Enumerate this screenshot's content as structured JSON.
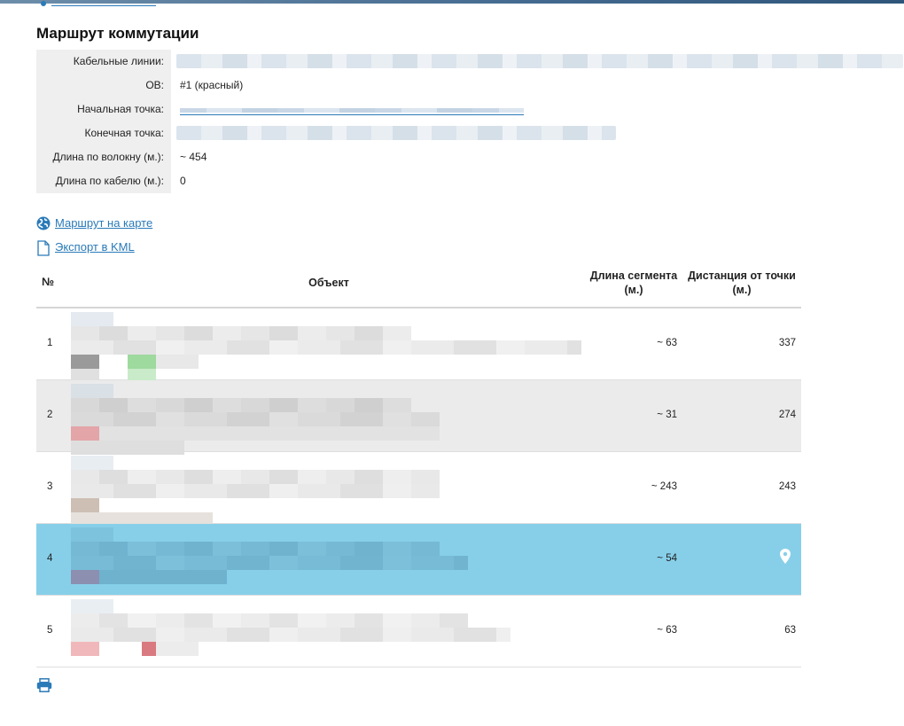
{
  "page": {
    "title": "Маршрут коммутации"
  },
  "info": {
    "rows": [
      {
        "label": "Кабельные линии:",
        "value": ""
      },
      {
        "label": "ОВ:",
        "value": "#1 (красный)"
      },
      {
        "label": "Начальная точка:",
        "value": ""
      },
      {
        "label": "Конечная точка:",
        "value": ""
      },
      {
        "label": "Длина по волокну (м.):",
        "value": "~ 454"
      },
      {
        "label": "Длина по кабелю (м.):",
        "value": "0"
      }
    ]
  },
  "links": {
    "map_route": "Маршрут на карте",
    "export_kml": "Экспорт в KML"
  },
  "table": {
    "headers": {
      "num": "№",
      "object": "Объект",
      "segment_length": "Длина сегмента (м.)",
      "distance": "Дистанция от точки (м.)"
    },
    "rows": [
      {
        "num": "1",
        "segment": "~ 63",
        "distance": "337"
      },
      {
        "num": "2",
        "segment": "~ 31",
        "distance": "274"
      },
      {
        "num": "3",
        "segment": "~ 243",
        "distance": "243"
      },
      {
        "num": "4",
        "segment": "~ 54",
        "distance": ""
      },
      {
        "num": "5",
        "segment": "~ 63",
        "distance": "63"
      }
    ]
  },
  "icons": {
    "globe": "globe-icon",
    "document": "document-icon",
    "pin": "map-pin-icon",
    "print": "print-icon"
  },
  "colors": {
    "link": "#2a7ab8",
    "selected_row": "#87cfe9",
    "alt_row": "#ebebeb"
  }
}
